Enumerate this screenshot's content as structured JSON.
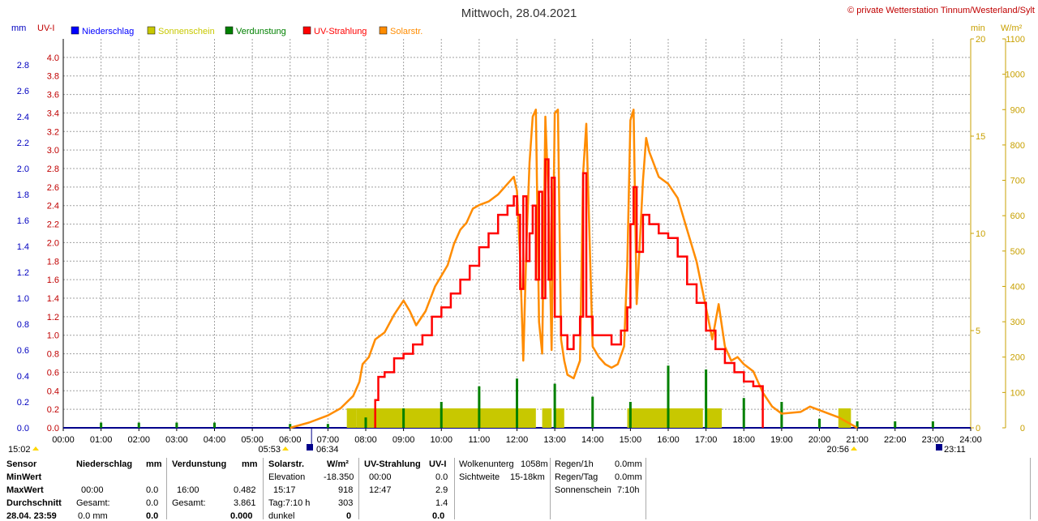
{
  "title": "Mittwoch, 28.04.2021",
  "credit": "© private Wetterstation Tinnum/Westerland/Sylt",
  "colors": {
    "niederschlag": "#0000ff",
    "sonnenschein": "#c8c800",
    "verdunstung": "#008000",
    "uv": "#ff0000",
    "solar": "#ff8c00",
    "axis_left": "#0000c0",
    "axis_mid": "#c00000",
    "axis_right": "#c8a000",
    "grid": "#a0a0a0"
  },
  "axis_units": {
    "mm": "mm",
    "uv": "UV-I",
    "min": "min",
    "wm2": "W/m²"
  },
  "legend": [
    {
      "label": "Niederschlag",
      "color": "#0000ff"
    },
    {
      "label": "Sonnenschein",
      "color": "#c8c800"
    },
    {
      "label": "Verdunstung",
      "color": "#008000"
    },
    {
      "label": "UV-Strahlung",
      "color": "#ff0000"
    },
    {
      "label": "Solarstr.",
      "color": "#ff8c00"
    }
  ],
  "sun_markers": {
    "left_time": "15:02",
    "sunrise_civil": "05:53",
    "sunrise": "06:34",
    "sunset": "20:56",
    "moon": "23:11"
  },
  "chart_data": {
    "type": "line",
    "x_range": [
      "00:00",
      "24:00"
    ],
    "x_ticks": [
      "00:00",
      "01:00",
      "02:00",
      "03:00",
      "04:00",
      "05:00",
      "06:00",
      "07:00",
      "08:00",
      "09:00",
      "10:00",
      "11:00",
      "12:00",
      "13:00",
      "14:00",
      "15:00",
      "16:00",
      "17:00",
      "18:00",
      "19:00",
      "20:00",
      "21:00",
      "22:00",
      "23:00",
      "24:00"
    ],
    "y_mm_ticks": [
      "0.0",
      "0.2",
      "0.4",
      "0.6",
      "0.8",
      "1.0",
      "1.2",
      "1.4",
      "1.6",
      "1.8",
      "2.0",
      "2.2",
      "2.4",
      "2.6",
      "2.8"
    ],
    "y_uv_ticks": [
      "0.0",
      "0.2",
      "0.4",
      "0.6",
      "0.8",
      "1.0",
      "1.2",
      "1.4",
      "1.6",
      "1.8",
      "2.0",
      "2.2",
      "2.4",
      "2.6",
      "2.8",
      "3.0",
      "3.2",
      "3.4",
      "3.6",
      "3.8",
      "4.0"
    ],
    "y_min_ticks": [
      "0",
      "5",
      "10",
      "15",
      "20"
    ],
    "y_wm2_ticks": [
      "0",
      "100",
      "200",
      "300",
      "400",
      "500",
      "600",
      "700",
      "800",
      "900",
      "1000",
      "1100"
    ],
    "uv_ylim": [
      0,
      4.2
    ],
    "solar_ylim": [
      0,
      1100
    ],
    "mm_ylim": [
      0,
      3.0
    ],
    "min_ylim": [
      0,
      20
    ],
    "series": [
      {
        "name": "Solarstr.",
        "axis": "W/m²",
        "points": [
          [
            "06:00",
            0
          ],
          [
            "06:30",
            15
          ],
          [
            "07:00",
            35
          ],
          [
            "07:20",
            55
          ],
          [
            "07:40",
            90
          ],
          [
            "07:50",
            130
          ],
          [
            "07:55",
            180
          ],
          [
            "08:05",
            200
          ],
          [
            "08:15",
            250
          ],
          [
            "08:30",
            270
          ],
          [
            "08:45",
            320
          ],
          [
            "09:00",
            360
          ],
          [
            "09:10",
            330
          ],
          [
            "09:20",
            290
          ],
          [
            "09:35",
            330
          ],
          [
            "09:50",
            400
          ],
          [
            "10:00",
            430
          ],
          [
            "10:10",
            460
          ],
          [
            "10:20",
            520
          ],
          [
            "10:30",
            560
          ],
          [
            "10:40",
            580
          ],
          [
            "10:50",
            620
          ],
          [
            "11:00",
            630
          ],
          [
            "11:15",
            640
          ],
          [
            "11:30",
            660
          ],
          [
            "11:45",
            690
          ],
          [
            "11:55",
            710
          ],
          [
            "12:00",
            670
          ],
          [
            "12:05",
            480
          ],
          [
            "12:10",
            190
          ],
          [
            "12:15",
            520
          ],
          [
            "12:20",
            750
          ],
          [
            "12:25",
            880
          ],
          [
            "12:30",
            900
          ],
          [
            "12:35",
            300
          ],
          [
            "12:40",
            210
          ],
          [
            "12:45",
            880
          ],
          [
            "12:50",
            650
          ],
          [
            "12:55",
            220
          ],
          [
            "13:00",
            890
          ],
          [
            "13:05",
            900
          ],
          [
            "13:10",
            250
          ],
          [
            "13:15",
            190
          ],
          [
            "13:20",
            150
          ],
          [
            "13:30",
            140
          ],
          [
            "13:40",
            190
          ],
          [
            "13:45",
            720
          ],
          [
            "13:50",
            860
          ],
          [
            "14:00",
            230
          ],
          [
            "14:10",
            200
          ],
          [
            "14:20",
            180
          ],
          [
            "14:30",
            170
          ],
          [
            "14:40",
            180
          ],
          [
            "14:50",
            230
          ],
          [
            "14:55",
            460
          ],
          [
            "15:00",
            870
          ],
          [
            "15:05",
            900
          ],
          [
            "15:10",
            350
          ],
          [
            "15:20",
            700
          ],
          [
            "15:25",
            820
          ],
          [
            "15:30",
            780
          ],
          [
            "15:45",
            710
          ],
          [
            "16:00",
            690
          ],
          [
            "16:15",
            650
          ],
          [
            "16:30",
            560
          ],
          [
            "16:45",
            470
          ],
          [
            "17:00",
            340
          ],
          [
            "17:10",
            250
          ],
          [
            "17:20",
            350
          ],
          [
            "17:30",
            230
          ],
          [
            "17:40",
            190
          ],
          [
            "17:50",
            200
          ],
          [
            "18:00",
            180
          ],
          [
            "18:15",
            160
          ],
          [
            "18:30",
            100
          ],
          [
            "18:45",
            60
          ],
          [
            "19:00",
            40
          ],
          [
            "19:30",
            45
          ],
          [
            "19:45",
            60
          ],
          [
            "20:00",
            50
          ],
          [
            "20:30",
            30
          ],
          [
            "20:50",
            10
          ],
          [
            "21:00",
            0
          ]
        ]
      },
      {
        "name": "UV-Strahlung",
        "axis": "UV-I",
        "points": [
          [
            "08:15",
            0.3
          ],
          [
            "08:20",
            0.55
          ],
          [
            "08:30",
            0.6
          ],
          [
            "08:45",
            0.75
          ],
          [
            "09:00",
            0.8
          ],
          [
            "09:15",
            0.9
          ],
          [
            "09:30",
            1.0
          ],
          [
            "09:45",
            1.2
          ],
          [
            "10:00",
            1.3
          ],
          [
            "10:15",
            1.45
          ],
          [
            "10:30",
            1.6
          ],
          [
            "10:45",
            1.75
          ],
          [
            "11:00",
            1.95
          ],
          [
            "11:15",
            2.1
          ],
          [
            "11:30",
            2.3
          ],
          [
            "11:45",
            2.4
          ],
          [
            "11:55",
            2.5
          ],
          [
            "12:00",
            2.3
          ],
          [
            "12:05",
            1.5
          ],
          [
            "12:10",
            2.5
          ],
          [
            "12:15",
            1.8
          ],
          [
            "12:20",
            2.1
          ],
          [
            "12:25",
            2.4
          ],
          [
            "12:30",
            1.6
          ],
          [
            "12:35",
            2.55
          ],
          [
            "12:40",
            1.4
          ],
          [
            "12:45",
            2.9
          ],
          [
            "12:50",
            1.6
          ],
          [
            "12:55",
            2.7
          ],
          [
            "13:00",
            1.2
          ],
          [
            "13:10",
            1.0
          ],
          [
            "13:20",
            0.85
          ],
          [
            "13:30",
            1.0
          ],
          [
            "13:40",
            1.2
          ],
          [
            "13:45",
            2.75
          ],
          [
            "13:50",
            1.2
          ],
          [
            "14:00",
            1.0
          ],
          [
            "14:15",
            1.0
          ],
          [
            "14:30",
            0.9
          ],
          [
            "14:45",
            1.05
          ],
          [
            "14:55",
            1.3
          ],
          [
            "15:00",
            2.2
          ],
          [
            "15:05",
            2.6
          ],
          [
            "15:10",
            1.9
          ],
          [
            "15:20",
            2.3
          ],
          [
            "15:30",
            2.2
          ],
          [
            "15:45",
            2.1
          ],
          [
            "16:00",
            2.05
          ],
          [
            "16:15",
            1.85
          ],
          [
            "16:30",
            1.55
          ],
          [
            "16:45",
            1.35
          ],
          [
            "17:00",
            1.05
          ],
          [
            "17:15",
            0.85
          ],
          [
            "17:30",
            0.7
          ],
          [
            "17:45",
            0.6
          ],
          [
            "18:00",
            0.5
          ],
          [
            "18:15",
            0.45
          ],
          [
            "18:30",
            0.05
          ]
        ]
      },
      {
        "name": "Sonnenschein",
        "axis": "min",
        "bars": [
          [
            "07:30",
            "07:45",
            1
          ],
          [
            "07:45",
            "12:30",
            1
          ],
          [
            "12:40",
            "12:55",
            1
          ],
          [
            "13:00",
            "13:15",
            1
          ],
          [
            "14:55",
            "16:55",
            1
          ],
          [
            "17:00",
            "17:25",
            1
          ],
          [
            "20:30",
            "20:50",
            1
          ]
        ]
      },
      {
        "name": "Verdunstung",
        "axis": "mm",
        "spikes": [
          [
            "01:00",
            0.04
          ],
          [
            "02:00",
            0.04
          ],
          [
            "03:00",
            0.04
          ],
          [
            "04:00",
            0.04
          ],
          [
            "06:00",
            0.03
          ],
          [
            "07:00",
            0.03
          ],
          [
            "08:00",
            0.08
          ],
          [
            "09:00",
            0.15
          ],
          [
            "10:00",
            0.2
          ],
          [
            "11:00",
            0.32
          ],
          [
            "12:00",
            0.38
          ],
          [
            "13:00",
            0.34
          ],
          [
            "14:00",
            0.24
          ],
          [
            "15:00",
            0.2
          ],
          [
            "16:00",
            0.48
          ],
          [
            "17:00",
            0.45
          ],
          [
            "18:00",
            0.23
          ],
          [
            "19:00",
            0.2
          ],
          [
            "20:00",
            0.07
          ],
          [
            "21:00",
            0.05
          ],
          [
            "22:00",
            0.05
          ],
          [
            "23:00",
            0.05
          ]
        ]
      }
    ]
  },
  "stats": {
    "row_labels": [
      "Sensor",
      "MinWert",
      "MaxWert",
      "Durchschnitt",
      "28.04. 23:59"
    ],
    "niederschlag": {
      "head": "Niederschlag",
      "unit": "mm",
      "max_time": "00:00",
      "max_val": "0.0",
      "gesamt_label": "Gesamt:",
      "gesamt_val": "0.0",
      "last_val": "0.0 mm",
      "last_bold": "0.0"
    },
    "verdunstung": {
      "head": "Verdunstung",
      "unit": "mm",
      "max_time": "16:00",
      "max_val": "0.482",
      "gesamt_label": "Gesamt:",
      "gesamt_val": "3.861",
      "last_bold": "0.000"
    },
    "solar": {
      "head": "Solarstr.",
      "unit": "W/m²",
      "elev_label": "Elevation",
      "elev_val": "-18.350",
      "max_time": "15:17",
      "max_val": "918",
      "tag_label": "Tag:7:10 h",
      "tag_val": "303",
      "dunkel_label": "dunkel",
      "last_bold": "0"
    },
    "uv": {
      "head": "UV-Strahlung",
      "unit": "UV-I",
      "min_time": "00:00",
      "min_val": "0.0",
      "max_time": "12:47",
      "max_val": "2.9",
      "avg_val": "1.4",
      "last_bold": "0.0"
    },
    "wolken": {
      "label1": "Wolkenunterg",
      "val1": "1058m",
      "label2": "Sichtweite",
      "val2": "15-18km"
    },
    "regen": {
      "label1": "Regen/1h",
      "val1": "0.0mm",
      "label2": "Regen/Tag",
      "val2": "0.0mm",
      "label3": "Sonnenschein",
      "val3": "7:10h"
    }
  }
}
